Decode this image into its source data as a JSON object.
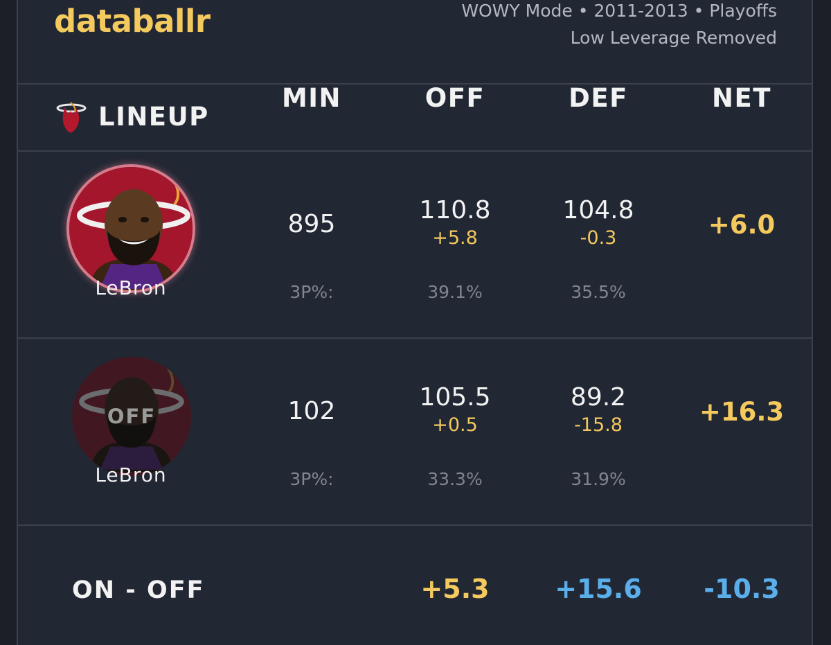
{
  "brand": "databallr",
  "meta": {
    "line1": "WOWY Mode • 2011-2013 • Playoffs",
    "line2": "Low Leverage Removed"
  },
  "columns": {
    "lineup": "LINEUP",
    "min": "MIN",
    "off": "OFF",
    "def": "DEF",
    "net": "NET"
  },
  "rows": [
    {
      "player": "LeBron",
      "status": "on",
      "min": "895",
      "off": "110.8",
      "off_delta": "+5.8",
      "def": "104.8",
      "def_delta": "-0.3",
      "net": "+6.0",
      "pct_label": "3P%:",
      "off_pct": "39.1%",
      "def_pct": "35.5%"
    },
    {
      "player": "LeBron",
      "status": "off",
      "overlay": "OFF",
      "min": "102",
      "off": "105.5",
      "off_delta": "+0.5",
      "def": "89.2",
      "def_delta": "-15.8",
      "net": "+16.3",
      "pct_label": "3P%:",
      "off_pct": "33.3%",
      "def_pct": "31.9%"
    }
  ],
  "footer": {
    "label": "ON - OFF",
    "off": "+5.3",
    "def": "+15.6",
    "net": "-10.3"
  },
  "colors": {
    "gold": "#f4c95d",
    "blue": "#5aaeea",
    "bg": "#222734",
    "heat_red": "#b3182d"
  },
  "icons": {
    "team_logo": "heat-logo-icon"
  }
}
